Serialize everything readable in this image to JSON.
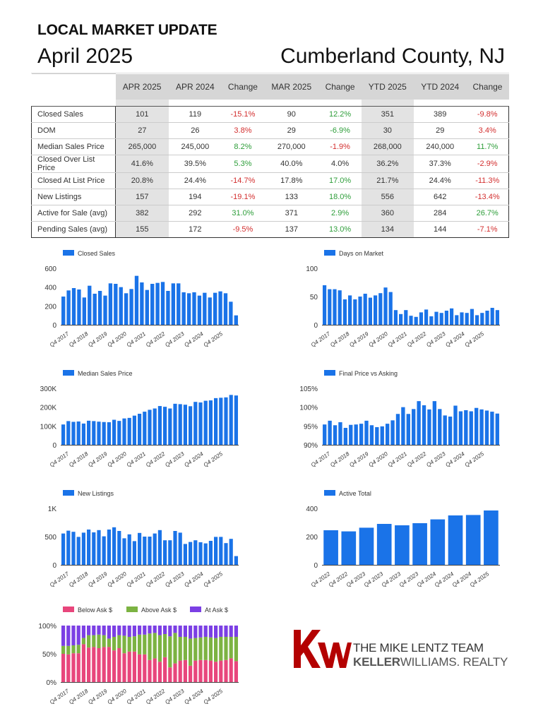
{
  "header": {
    "title": "LOCAL MARKET UPDATE",
    "month": "April 2025",
    "county": "Cumberland County, NJ"
  },
  "table": {
    "columns": [
      "APR 2025",
      "APR 2024",
      "Change",
      "MAR 2025",
      "Change",
      "YTD 2025",
      "YTD 2024",
      "Change"
    ],
    "rows": [
      {
        "label": "Closed Sales",
        "cells": [
          "101",
          "119",
          "-15.1%",
          "90",
          "12.2%",
          "351",
          "389",
          "-9.8%"
        ]
      },
      {
        "label": "DOM",
        "cells": [
          "27",
          "26",
          "3.8%",
          "29",
          "-6.9%",
          "30",
          "29",
          "3.4%"
        ]
      },
      {
        "label": "Median Sales Price",
        "cells": [
          "265,000",
          "245,000",
          "8.2%",
          "270,000",
          "-1.9%",
          "268,000",
          "240,000",
          "11.7%"
        ]
      },
      {
        "label": "Closed Over List Price",
        "cells": [
          "41.6%",
          "39.5%",
          "5.3%",
          "40.0%",
          "4.0%",
          "36.2%",
          "37.3%",
          "-2.9%"
        ]
      },
      {
        "label": "Closed At List Price",
        "cells": [
          "20.8%",
          "24.4%",
          "-14.7%",
          "17.8%",
          "17.0%",
          "21.7%",
          "24.4%",
          "-11.3%"
        ]
      },
      {
        "label": "New Listings",
        "cells": [
          "157",
          "194",
          "-19.1%",
          "133",
          "18.0%",
          "556",
          "642",
          "-13.4%"
        ]
      },
      {
        "label": "Active for Sale (avg)",
        "cells": [
          "382",
          "292",
          "31.0%",
          "371",
          "2.9%",
          "360",
          "284",
          "26.7%"
        ]
      },
      {
        "label": "Pending Sales (avg)",
        "cells": [
          "155",
          "172",
          "-9.5%",
          "137",
          "13.0%",
          "134",
          "144",
          "-7.1%"
        ]
      }
    ]
  },
  "colors": {
    "bar": "#1a73e8",
    "below": "#e8467c",
    "above": "#7cb342",
    "at": "#7b3fe4",
    "neg": "#d32f2f",
    "pos": "#2e9e3a",
    "kw_red": "#b40101"
  },
  "logo": {
    "team": "THE MIKE LENTZ TEAM",
    "brand_bold": "KELLER",
    "brand_rest": "WILLIAMS. REALTY"
  },
  "chart_data": [
    {
      "type": "bar",
      "legend": [
        "Closed Sales"
      ],
      "ylim": [
        0,
        600
      ],
      "yticks": [
        "0",
        "200",
        "400",
        "600"
      ],
      "xticks": [
        "Q4 2017",
        "Q4 2018",
        "Q4 2019",
        "Q4 2020",
        "Q4 2021",
        "Q4 2022",
        "Q4 2023",
        "Q4 2024",
        "Q4 2025"
      ],
      "values": [
        300,
        365,
        390,
        375,
        290,
        415,
        330,
        360,
        310,
        440,
        435,
        400,
        335,
        380,
        520,
        450,
        370,
        435,
        445,
        455,
        360,
        440,
        440,
        345,
        335,
        345,
        310,
        340,
        290,
        340,
        355,
        335,
        245,
        100
      ]
    },
    {
      "type": "bar",
      "legend": [
        "Days on Market"
      ],
      "ylim": [
        0,
        100
      ],
      "yticks": [
        "0",
        "50",
        "100"
      ],
      "xticks": [
        "Q4 2017",
        "Q4 2018",
        "Q4 2019",
        "Q4 2020",
        "Q4 2021",
        "Q4 2022",
        "Q4 2023",
        "Q4 2024",
        "Q4 2025"
      ],
      "values": [
        70,
        63,
        63,
        61,
        45,
        52,
        45,
        50,
        55,
        48,
        52,
        56,
        66,
        58,
        26,
        19,
        26,
        16,
        14,
        22,
        27,
        15,
        23,
        21,
        25,
        29,
        17,
        22,
        21,
        28,
        17,
        21,
        25,
        30,
        26
      ]
    },
    {
      "type": "bar",
      "legend": [
        "Median Sales Price"
      ],
      "ylim": [
        0,
        300000
      ],
      "yticks": [
        "0",
        "100K",
        "200K",
        "300K"
      ],
      "xticks": [
        "Q4 2017",
        "Q4 2018",
        "Q4 2019",
        "Q4 2020",
        "Q4 2021",
        "Q4 2022",
        "Q4 2023",
        "Q4 2024",
        "Q4 2025"
      ],
      "values": [
        108000,
        126000,
        122000,
        124000,
        113000,
        128000,
        126000,
        123000,
        121000,
        120000,
        133000,
        127000,
        140000,
        143000,
        155000,
        165000,
        176000,
        186000,
        193000,
        206000,
        202000,
        193000,
        218000,
        216000,
        213000,
        205000,
        228000,
        225000,
        234000,
        236000,
        248000,
        250000,
        252000,
        265000,
        262000
      ]
    },
    {
      "type": "bar",
      "legend": [
        "Final Price vs Asking"
      ],
      "ylim": [
        90,
        105
      ],
      "yticks": [
        "90%",
        "95%",
        "100%",
        "105%"
      ],
      "xticks": [
        "Q4 2017",
        "Q4 2018",
        "Q4 2019",
        "Q4 2020",
        "Q4 2021",
        "Q4 2022",
        "Q4 2023",
        "Q4 2024",
        "Q4 2025"
      ],
      "values": [
        95.4,
        96.4,
        95.2,
        96.0,
        94.5,
        95.3,
        95.4,
        95.6,
        96.4,
        95.2,
        94.7,
        94.9,
        95.6,
        96.5,
        98.2,
        100.0,
        98.2,
        99.5,
        101.6,
        100.5,
        99.4,
        101.6,
        99.5,
        97.8,
        97.5,
        100.4,
        98.9,
        99.2,
        98.9,
        99.8,
        99.4,
        99.1,
        98.8,
        98.3
      ]
    },
    {
      "type": "bar",
      "legend": [
        "New Listings"
      ],
      "ylim": [
        0,
        1000
      ],
      "yticks": [
        "0",
        "500",
        "1K"
      ],
      "xticks": [
        "Q4 2017",
        "Q4 2018",
        "Q4 2019",
        "Q4 2020",
        "Q4 2021",
        "Q4 2022",
        "Q4 2023",
        "Q4 2024",
        "Q4 2025"
      ],
      "values": [
        555,
        605,
        585,
        495,
        570,
        625,
        575,
        615,
        505,
        625,
        665,
        600,
        470,
        540,
        420,
        565,
        500,
        500,
        555,
        615,
        435,
        435,
        600,
        570,
        370,
        405,
        435,
        400,
        380,
        425,
        495,
        495,
        385,
        460,
        155
      ]
    },
    {
      "type": "bar",
      "legend": [
        "Active Total"
      ],
      "ylim": [
        0,
        400
      ],
      "yticks": [
        "0",
        "200",
        "400"
      ],
      "xticks": [
        "Q4 2022",
        "Q4 2022",
        "Q4 2023",
        "Q4 2023",
        "Q4 2023",
        "Q4 2023",
        "Q4 2024",
        "Q4 2024",
        "Q4 2024",
        "Q4 2025"
      ],
      "values": [
        245,
        237,
        263,
        290,
        280,
        295,
        322,
        350,
        353,
        385
      ]
    },
    {
      "type": "bar",
      "stacked": true,
      "legend": [
        "Below Ask $",
        "Above Ask $",
        "At Ask $"
      ],
      "ylim": [
        0,
        100
      ],
      "yticks": [
        "0%",
        "50%",
        "100%"
      ],
      "xticks": [
        "Q4 2017",
        "Q4 2018",
        "Q4 2019",
        "Q4 2020",
        "Q4 2021",
        "Q4 2022",
        "Q4 2023",
        "Q4 2024",
        "Q4 2025"
      ],
      "series": [
        {
          "name": "Below Ask $",
          "values": [
            50,
            49,
            51,
            51,
            67,
            61,
            62,
            60,
            62,
            62,
            56,
            60,
            51,
            54,
            54,
            49,
            49,
            39,
            42,
            36,
            44,
            26,
            33,
            38,
            39,
            29,
            38,
            39,
            39,
            38,
            36,
            38,
            39,
            42,
            37
          ]
        },
        {
          "name": "Above Ask $",
          "values": [
            14,
            15,
            14,
            15,
            11,
            22,
            21,
            24,
            21,
            15,
            24,
            23,
            31,
            26,
            27,
            35,
            35,
            47,
            45,
            47,
            41,
            55,
            54,
            42,
            41,
            48,
            40,
            40,
            41,
            41,
            42,
            42,
            41,
            38,
            43
          ]
        },
        {
          "name": "At Ask $",
          "values": [
            36,
            36,
            35,
            34,
            22,
            17,
            17,
            16,
            17,
            23,
            20,
            17,
            18,
            20,
            19,
            16,
            16,
            14,
            13,
            17,
            15,
            19,
            13,
            20,
            20,
            23,
            22,
            21,
            20,
            21,
            22,
            20,
            20,
            20,
            20
          ]
        }
      ]
    }
  ]
}
